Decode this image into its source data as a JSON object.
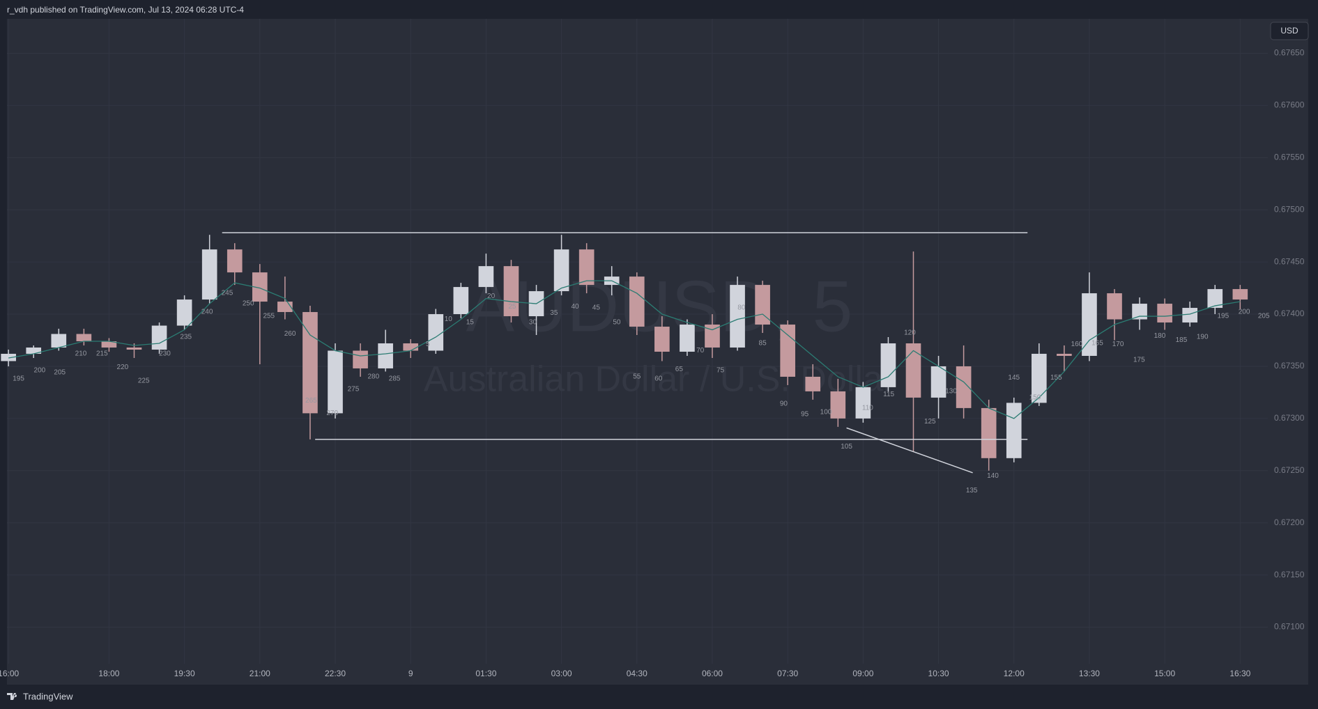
{
  "chart_data": {
    "type": "candlestick",
    "title": "r_vdh published on TradingView.com, Jul 13, 2024 06:28 UTC-4",
    "currency_button": "USD",
    "footer_brand": "TradingView",
    "watermark": {
      "symbol": "AUDUSD, 5",
      "description": "Australian Dollar / U.S. Dollar"
    },
    "up_color": "#d1d4dc",
    "down_color": "#c49a9e",
    "grid": true,
    "xlim": [
      15.97,
      41.05
    ],
    "xticks": [
      {
        "value": 16,
        "label": "16:00"
      },
      {
        "value": 18,
        "label": "18:00"
      },
      {
        "value": 19.5,
        "label": "19:30"
      },
      {
        "value": 21,
        "label": "21:00"
      },
      {
        "value": 22.5,
        "label": "22:30"
      },
      {
        "value": 24,
        "label": "9"
      },
      {
        "value": 25.5,
        "label": "01:30"
      },
      {
        "value": 27,
        "label": "03:00"
      },
      {
        "value": 28.5,
        "label": "04:30"
      },
      {
        "value": 30,
        "label": "06:00"
      },
      {
        "value": 31.5,
        "label": "07:30"
      },
      {
        "value": 33,
        "label": "09:00"
      },
      {
        "value": 34.5,
        "label": "10:30"
      },
      {
        "value": 36,
        "label": "12:00"
      },
      {
        "value": 37.5,
        "label": "13:30"
      },
      {
        "value": 39,
        "label": "15:00"
      },
      {
        "value": 40.5,
        "label": "16:30"
      }
    ],
    "ylim": [
      0.67065,
      0.67683
    ],
    "yticks": [
      {
        "value": 0.671,
        "label": "0.67100"
      },
      {
        "value": 0.6715,
        "label": "0.67150"
      },
      {
        "value": 0.672,
        "label": "0.67200"
      },
      {
        "value": 0.6725,
        "label": "0.67250"
      },
      {
        "value": 0.673,
        "label": "0.67300"
      },
      {
        "value": 0.6735,
        "label": "0.67350"
      },
      {
        "value": 0.674,
        "label": "0.67400"
      },
      {
        "value": 0.6745,
        "label": "0.67450"
      },
      {
        "value": 0.675,
        "label": "0.67500"
      },
      {
        "value": 0.6755,
        "label": "0.67550"
      },
      {
        "value": 0.676,
        "label": "0.67600"
      },
      {
        "value": 0.6765,
        "label": "0.67650"
      }
    ],
    "x": [
      16,
      16.5,
      17,
      17.5,
      18,
      18.5,
      19,
      19.5,
      20,
      20.5,
      21,
      21.5,
      22,
      22.5,
      23,
      23.5,
      24,
      24.5,
      25,
      25.5,
      26,
      26.5,
      27,
      27.5,
      28,
      28.5,
      29,
      29.5,
      30,
      30.5,
      31,
      31.5,
      32,
      32.5,
      33,
      33.5,
      34,
      34.5,
      35,
      35.5,
      36,
      36.5,
      37,
      37.5,
      38,
      38.5,
      39,
      39.5,
      40,
      40.5
    ],
    "ohlc": [
      [
        0.67355,
        0.67366,
        0.6735,
        0.67362
      ],
      [
        0.67362,
        0.6737,
        0.67358,
        0.67368
      ],
      [
        0.67368,
        0.67386,
        0.67365,
        0.67381
      ],
      [
        0.67381,
        0.67386,
        0.6737,
        0.67374
      ],
      [
        0.67374,
        0.67377,
        0.67364,
        0.67368
      ],
      [
        0.67368,
        0.67372,
        0.67358,
        0.67366
      ],
      [
        0.67366,
        0.67392,
        0.67362,
        0.67389
      ],
      [
        0.67389,
        0.67418,
        0.67385,
        0.67414
      ],
      [
        0.67414,
        0.67476,
        0.6741,
        0.67462
      ],
      [
        0.67462,
        0.67468,
        0.67428,
        0.6744
      ],
      [
        0.6744,
        0.67448,
        0.67352,
        0.67412
      ],
      [
        0.67412,
        0.67436,
        0.67395,
        0.67402
      ],
      [
        0.67402,
        0.67408,
        0.6728,
        0.67305
      ],
      [
        0.67305,
        0.67372,
        0.673,
        0.67365
      ],
      [
        0.67365,
        0.67372,
        0.6734,
        0.67348
      ],
      [
        0.67348,
        0.67385,
        0.67345,
        0.67372
      ],
      [
        0.67372,
        0.67376,
        0.67358,
        0.67365
      ],
      [
        0.67365,
        0.67405,
        0.67362,
        0.674
      ],
      [
        0.674,
        0.6743,
        0.67396,
        0.67426
      ],
      [
        0.67426,
        0.67458,
        0.6742,
        0.67446
      ],
      [
        0.67446,
        0.67452,
        0.67392,
        0.67398
      ],
      [
        0.67398,
        0.67428,
        0.6738,
        0.67422
      ],
      [
        0.67422,
        0.67476,
        0.67418,
        0.67462
      ],
      [
        0.67462,
        0.67468,
        0.6742,
        0.67428
      ],
      [
        0.67428,
        0.67446,
        0.67418,
        0.67436
      ],
      [
        0.67436,
        0.6744,
        0.6738,
        0.67388
      ],
      [
        0.67388,
        0.67398,
        0.67355,
        0.67364
      ],
      [
        0.67364,
        0.67395,
        0.6736,
        0.6739
      ],
      [
        0.6739,
        0.674,
        0.67358,
        0.67368
      ],
      [
        0.67368,
        0.67436,
        0.67365,
        0.67428
      ],
      [
        0.67428,
        0.67432,
        0.67382,
        0.6739
      ],
      [
        0.6739,
        0.67394,
        0.67332,
        0.6734
      ],
      [
        0.6734,
        0.67352,
        0.67318,
        0.67326
      ],
      [
        0.67326,
        0.67338,
        0.67292,
        0.673
      ],
      [
        0.673,
        0.67335,
        0.67296,
        0.6733
      ],
      [
        0.6733,
        0.67378,
        0.67326,
        0.67372
      ],
      [
        0.67372,
        0.6746,
        0.67268,
        0.6732
      ],
      [
        0.6732,
        0.6736,
        0.673,
        0.6735
      ],
      [
        0.6735,
        0.6737,
        0.673,
        0.6731
      ],
      [
        0.6731,
        0.67318,
        0.6725,
        0.67262
      ],
      [
        0.67262,
        0.6732,
        0.67258,
        0.67315
      ],
      [
        0.67315,
        0.67372,
        0.67312,
        0.67362
      ],
      [
        0.67362,
        0.6737,
        0.67345,
        0.6736
      ],
      [
        0.6736,
        0.6744,
        0.67355,
        0.6742
      ],
      [
        0.6742,
        0.67424,
        0.67375,
        0.67395
      ],
      [
        0.67395,
        0.67416,
        0.67385,
        0.6741
      ],
      [
        0.6741,
        0.67415,
        0.67385,
        0.67392
      ],
      [
        0.67392,
        0.67412,
        0.67388,
        0.67406
      ],
      [
        0.67406,
        0.67428,
        0.674,
        0.67424
      ],
      [
        0.67424,
        0.67428,
        0.67405,
        0.67414
      ]
    ],
    "moving_average": {
      "color": "#2b7c73",
      "values": [
        0.67358,
        0.67362,
        0.67368,
        0.67374,
        0.67374,
        0.6737,
        0.67372,
        0.67385,
        0.6741,
        0.6743,
        0.67425,
        0.67415,
        0.6738,
        0.67365,
        0.6736,
        0.67362,
        0.67365,
        0.67378,
        0.67395,
        0.67415,
        0.67412,
        0.6741,
        0.67425,
        0.67432,
        0.67432,
        0.6742,
        0.674,
        0.67392,
        0.67385,
        0.67395,
        0.674,
        0.6738,
        0.6736,
        0.6734,
        0.6733,
        0.6734,
        0.67365,
        0.6735,
        0.67335,
        0.6731,
        0.673,
        0.6732,
        0.67345,
        0.67375,
        0.6739,
        0.67398,
        0.67398,
        0.674,
        0.67408,
        0.67412
      ]
    },
    "drawings": {
      "color": "#d1d4dc",
      "lines": [
        {
          "x": [
            20.25,
            36.27
          ],
          "y": [
            0.67478,
            0.67478
          ]
        },
        {
          "x": [
            22.1,
            36.27
          ],
          "y": [
            0.6728,
            0.6728
          ]
        },
        {
          "x": [
            32.67,
            35.18
          ],
          "y": [
            0.67291,
            0.67248
          ]
        }
      ]
    },
    "bar_labels": {
      "texts": [
        "195",
        "200",
        "205",
        "210",
        "215",
        "220",
        "225",
        "230",
        "235",
        "240",
        "245",
        "250",
        "255",
        "260",
        "265",
        "270",
        "275",
        "280",
        "285",
        "5",
        "10",
        "15",
        "20",
        "25",
        "30",
        "35",
        "40",
        "45",
        "50",
        "55",
        "60",
        "65",
        "70",
        "75",
        "80",
        "85",
        "90",
        "95",
        "100",
        "105",
        "110",
        "115",
        "120",
        "125",
        "130",
        "135",
        "140",
        "145",
        "150",
        "155",
        "160",
        "165",
        "170",
        "175",
        "180",
        "185",
        "190",
        "195",
        "200",
        "205"
      ],
      "x": [
        16.2,
        16.62,
        17.02,
        17.44,
        17.86,
        18.27,
        18.69,
        19.11,
        19.53,
        19.95,
        20.35,
        20.77,
        21.18,
        21.6,
        22.02,
        22.44,
        22.86,
        23.26,
        23.68,
        24.34,
        24.75,
        25.18,
        25.6,
        26.02,
        26.43,
        26.85,
        27.27,
        27.69,
        28.1,
        28.5,
        28.93,
        29.34,
        29.76,
        30.16,
        30.58,
        31,
        31.42,
        31.84,
        32.26,
        32.67,
        33.09,
        33.51,
        33.93,
        34.33,
        34.75,
        35.16,
        35.58,
        36,
        36.42,
        36.84,
        37.25,
        37.66,
        38.07,
        38.49,
        38.9,
        39.33,
        39.75,
        40.16,
        40.58,
        40.97
      ],
      "y": [
        0.67338,
        0.67346,
        0.67344,
        0.67362,
        0.67362,
        0.67349,
        0.67336,
        0.67362,
        0.67378,
        0.67402,
        0.6742,
        0.6741,
        0.67398,
        0.67381,
        0.67317,
        0.67305,
        0.67328,
        0.6734,
        0.67338,
        0.67371,
        0.67395,
        0.67392,
        0.67417,
        0.67407,
        0.67392,
        0.67401,
        0.67407,
        0.67406,
        0.67392,
        0.6734,
        0.67338,
        0.67347,
        0.67365,
        0.67346,
        0.67406,
        0.67372,
        0.67314,
        0.67304,
        0.67306,
        0.67273,
        0.6731,
        0.67323,
        0.67382,
        0.67297,
        0.67326,
        0.67231,
        0.67245,
        0.67339,
        0.6732,
        0.67339,
        0.67371,
        0.67372,
        0.67371,
        0.67356,
        0.67379,
        0.67375,
        0.67378,
        0.67398,
        0.67402,
        0.67398
      ]
    }
  }
}
